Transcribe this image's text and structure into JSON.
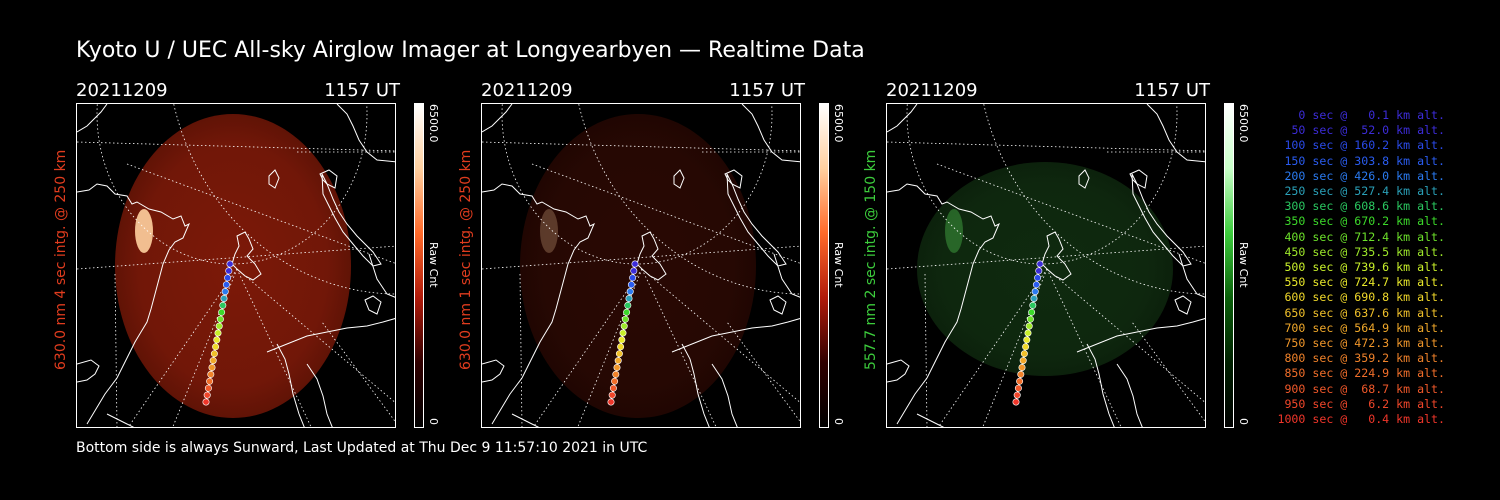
{
  "title": "Kyoto U / UEC All-sky Airglow Imager at Longyearbyen — Realtime Data",
  "footer": "Bottom side is always Sunward, Last Updated at Thu Dec  9 11:57:10 2021 in UTC",
  "panels": [
    {
      "date": "20211209",
      "time": "1157 UT",
      "ylabel": "630.0 nm 4 sec intg. @ 250 km",
      "label_color": "#e03c1e",
      "cbar_max": "6500.0",
      "cbar_unit": "Raw Cnt",
      "cbar_min": "0",
      "colormap": "red",
      "brightness": 0.75
    },
    {
      "date": "20211209",
      "time": "1157 UT",
      "ylabel": "630.0 nm 1 sec intg. @ 250 km",
      "label_color": "#e03c1e",
      "cbar_max": "6500.0",
      "cbar_unit": "Raw Cnt",
      "cbar_min": "0",
      "colormap": "red",
      "brightness": 0.25
    },
    {
      "date": "20211209",
      "time": "1157 UT",
      "ylabel": "557.7 nm 2 sec intg. @ 150 km",
      "label_color": "#3ccc3c",
      "cbar_max": "6500.0",
      "cbar_unit": "Raw Cnt",
      "cbar_min": "0",
      "colormap": "green",
      "brightness": 0.35
    }
  ],
  "legend": [
    {
      "text": "0 sec @   0.1 km alt.",
      "color": "#3c2cd8"
    },
    {
      "text": "50 sec @  52.0 km alt.",
      "color": "#3c2cd8"
    },
    {
      "text": "100 sec @ 160.2 km alt.",
      "color": "#2a4ae8"
    },
    {
      "text": "150 sec @ 303.8 km alt.",
      "color": "#2a5cf0"
    },
    {
      "text": "200 sec @ 426.0 km alt.",
      "color": "#2a7af0"
    },
    {
      "text": "250 sec @ 527.4 km alt.",
      "color": "#2aa0b8"
    },
    {
      "text": "300 sec @ 608.6 km alt.",
      "color": "#2ac860"
    },
    {
      "text": "350 sec @ 670.2 km alt.",
      "color": "#3cd82a"
    },
    {
      "text": "400 sec @ 712.4 km alt.",
      "color": "#6ce02a"
    },
    {
      "text": "450 sec @ 735.5 km alt.",
      "color": "#9ee82a"
    },
    {
      "text": "500 sec @ 739.6 km alt.",
      "color": "#c8f02a"
    },
    {
      "text": "550 sec @ 724.7 km alt.",
      "color": "#e8e82a"
    },
    {
      "text": "600 sec @ 690.8 km alt.",
      "color": "#f0d82a"
    },
    {
      "text": "650 sec @ 637.6 km alt.",
      "color": "#f0c02a"
    },
    {
      "text": "700 sec @ 564.9 km alt.",
      "color": "#f0a82a"
    },
    {
      "text": "750 sec @ 472.3 km alt.",
      "color": "#f0962a"
    },
    {
      "text": "800 sec @ 359.2 km alt.",
      "color": "#f0822a"
    },
    {
      "text": "850 sec @ 224.9 km alt.",
      "color": "#f06e2a"
    },
    {
      "text": "900 sec @  68.7 km alt.",
      "color": "#f0582a"
    },
    {
      "text": "950 sec @   6.2 km alt.",
      "color": "#f0462a"
    },
    {
      "text": "1000 sec @   0.4 km alt.",
      "color": "#f0362a"
    }
  ]
}
